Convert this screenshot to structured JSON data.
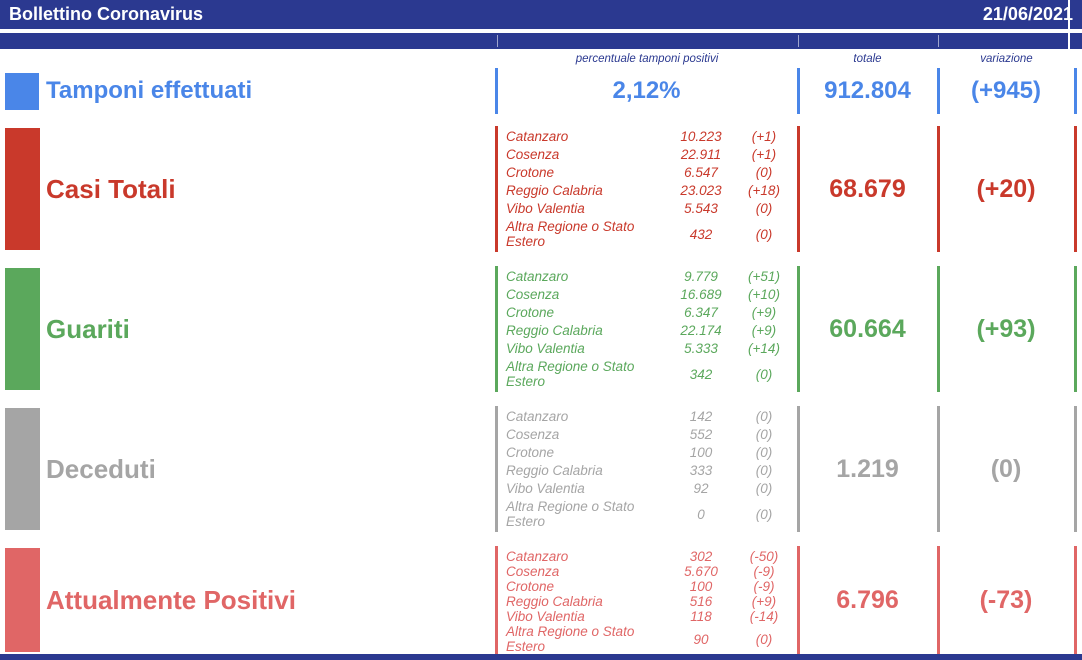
{
  "header": {
    "title": "Bollettino Coronavirus",
    "date": "21/06/2021"
  },
  "column_headers": {
    "percent": "percentuale tamponi positivi",
    "total": "totale",
    "variation": "variazione"
  },
  "colors": {
    "navy": "#2B3990",
    "blue": "#4A86E8",
    "red": "#C9392B",
    "green": "#5BA85C",
    "gray": "#A5A5A5",
    "salmon": "#E06666"
  },
  "tamponi": {
    "label": "Tamponi effettuati",
    "percent_positive": "2,12%",
    "total": "912.804",
    "variation": "(+945)"
  },
  "sections": [
    {
      "id": "casi-totali",
      "label": "Casi Totali",
      "color": "#C9392B",
      "total": "68.679",
      "variation": "(+20)",
      "rows": [
        [
          "Catanzaro",
          "10.223",
          "(+1)"
        ],
        [
          "Cosenza",
          "22.911",
          "(+1)"
        ],
        [
          "Crotone",
          "6.547",
          "(0)"
        ],
        [
          "Reggio Calabria",
          "23.023",
          "(+18)"
        ],
        [
          "Vibo Valentia",
          "5.543",
          "(0)"
        ],
        [
          "Altra Regione o Stato Estero",
          "432",
          "(0)"
        ]
      ]
    },
    {
      "id": "guariti",
      "label": "Guariti",
      "color": "#5BA85C",
      "total": "60.664",
      "variation": "(+93)",
      "rows": [
        [
          "Catanzaro",
          "9.779",
          "(+51)"
        ],
        [
          "Cosenza",
          "16.689",
          "(+10)"
        ],
        [
          "Crotone",
          "6.347",
          "(+9)"
        ],
        [
          "Reggio Calabria",
          "22.174",
          "(+9)"
        ],
        [
          "Vibo Valentia",
          "5.333",
          "(+14)"
        ],
        [
          "Altra Regione o Stato Estero",
          "342",
          "(0)"
        ]
      ]
    },
    {
      "id": "deceduti",
      "label": "Deceduti",
      "color": "#A5A5A5",
      "total": "1.219",
      "variation": "(0)",
      "rows": [
        [
          "Catanzaro",
          "142",
          "(0)"
        ],
        [
          "Cosenza",
          "552",
          "(0)"
        ],
        [
          "Crotone",
          "100",
          "(0)"
        ],
        [
          "Reggio Calabria",
          "333",
          "(0)"
        ],
        [
          "Vibo Valentia",
          "92",
          "(0)"
        ],
        [
          "Altra Regione o Stato Estero",
          "0",
          "(0)"
        ]
      ]
    },
    {
      "id": "attualmente-positivi",
      "label": "Attualmente Positivi",
      "color": "#E06666",
      "total": "6.796",
      "variation": "(-73)",
      "rows": [
        [
          "Catanzaro",
          "302",
          "(-50)"
        ],
        [
          "Cosenza",
          "5.670",
          "(-9)"
        ],
        [
          "Crotone",
          "100",
          "(-9)"
        ],
        [
          "Reggio Calabria",
          "516",
          "(+9)"
        ],
        [
          "Vibo Valentia",
          "118",
          "(-14)"
        ],
        [
          "Altra Regione o Stato Estero",
          "90",
          "(0)"
        ]
      ]
    }
  ]
}
